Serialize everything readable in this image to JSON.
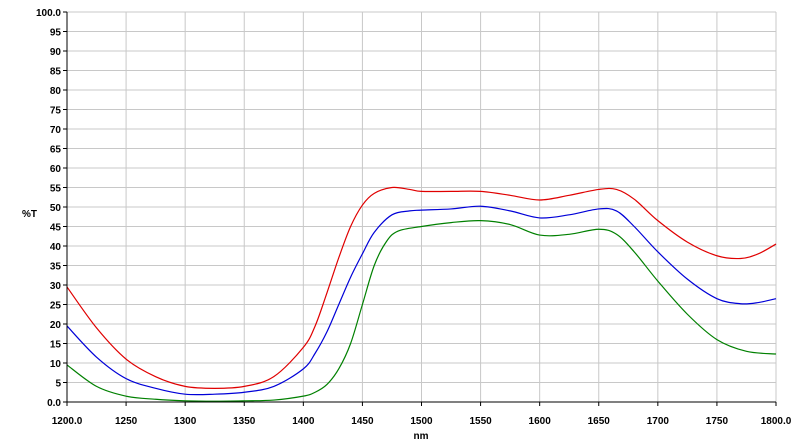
{
  "chart_data": {
    "type": "line",
    "xlabel": "nm",
    "ylabel": "%T",
    "xlim": [
      1200,
      1800
    ],
    "ylim": [
      0,
      100
    ],
    "x_ticks": [
      1200,
      1250,
      1300,
      1350,
      1400,
      1450,
      1500,
      1550,
      1600,
      1650,
      1700,
      1750,
      1800
    ],
    "x_tick_labels": [
      "1200.0",
      "1250",
      "1300",
      "1350",
      "1400",
      "1450",
      "1500",
      "1550",
      "1600",
      "1650",
      "1700",
      "1750",
      "1800.0"
    ],
    "y_ticks": [
      0,
      5,
      10,
      15,
      20,
      25,
      30,
      35,
      40,
      45,
      50,
      55,
      60,
      65,
      70,
      75,
      80,
      85,
      90,
      95,
      100
    ],
    "y_tick_labels": [
      "0.0",
      "5",
      "10",
      "15",
      "20",
      "25",
      "30",
      "35",
      "40",
      "45",
      "50",
      "55",
      "60",
      "65",
      "70",
      "75",
      "80",
      "85",
      "90",
      "95",
      "100.0"
    ],
    "grid": true,
    "colors": {
      "grid": "#c8c8c8",
      "axis": "#000000"
    },
    "series": [
      {
        "color": "#e00000",
        "points": [
          [
            1200,
            29.5
          ],
          [
            1225,
            19
          ],
          [
            1250,
            11
          ],
          [
            1275,
            6.5
          ],
          [
            1300,
            4
          ],
          [
            1325,
            3.5
          ],
          [
            1350,
            4
          ],
          [
            1375,
            6.5
          ],
          [
            1400,
            14
          ],
          [
            1410,
            19.5
          ],
          [
            1420,
            28
          ],
          [
            1430,
            37
          ],
          [
            1440,
            45
          ],
          [
            1450,
            50.5
          ],
          [
            1460,
            53.5
          ],
          [
            1475,
            55
          ],
          [
            1490,
            54.5
          ],
          [
            1500,
            54
          ],
          [
            1525,
            54
          ],
          [
            1550,
            54
          ],
          [
            1575,
            53
          ],
          [
            1600,
            51.8
          ],
          [
            1625,
            53
          ],
          [
            1650,
            54.5
          ],
          [
            1665,
            54.5
          ],
          [
            1680,
            52
          ],
          [
            1700,
            46.5
          ],
          [
            1725,
            41
          ],
          [
            1750,
            37.5
          ],
          [
            1770,
            36.8
          ],
          [
            1785,
            38
          ],
          [
            1800,
            40.5
          ]
        ]
      },
      {
        "color": "#0000d8",
        "points": [
          [
            1200,
            19.5
          ],
          [
            1225,
            11.5
          ],
          [
            1250,
            6
          ],
          [
            1275,
            3.5
          ],
          [
            1300,
            2
          ],
          [
            1325,
            2
          ],
          [
            1350,
            2.5
          ],
          [
            1375,
            4
          ],
          [
            1400,
            8.5
          ],
          [
            1410,
            12.5
          ],
          [
            1420,
            18
          ],
          [
            1430,
            25
          ],
          [
            1440,
            32
          ],
          [
            1450,
            38
          ],
          [
            1460,
            43.5
          ],
          [
            1475,
            48
          ],
          [
            1490,
            49
          ],
          [
            1500,
            49.2
          ],
          [
            1525,
            49.5
          ],
          [
            1550,
            50.2
          ],
          [
            1575,
            49
          ],
          [
            1600,
            47.2
          ],
          [
            1625,
            48
          ],
          [
            1650,
            49.5
          ],
          [
            1665,
            49
          ],
          [
            1680,
            45
          ],
          [
            1700,
            38.5
          ],
          [
            1725,
            31.5
          ],
          [
            1750,
            26.5
          ],
          [
            1770,
            25.2
          ],
          [
            1785,
            25.5
          ],
          [
            1800,
            26.5
          ]
        ]
      },
      {
        "color": "#008000",
        "points": [
          [
            1200,
            9.5
          ],
          [
            1225,
            4
          ],
          [
            1250,
            1.5
          ],
          [
            1275,
            0.7
          ],
          [
            1300,
            0.3
          ],
          [
            1325,
            0.2
          ],
          [
            1350,
            0.3
          ],
          [
            1375,
            0.5
          ],
          [
            1400,
            1.5
          ],
          [
            1410,
            2.5
          ],
          [
            1420,
            4.5
          ],
          [
            1430,
            8.5
          ],
          [
            1440,
            15
          ],
          [
            1450,
            25
          ],
          [
            1460,
            35
          ],
          [
            1470,
            41
          ],
          [
            1480,
            43.8
          ],
          [
            1500,
            45
          ],
          [
            1525,
            46
          ],
          [
            1550,
            46.5
          ],
          [
            1575,
            45.5
          ],
          [
            1600,
            42.8
          ],
          [
            1625,
            43
          ],
          [
            1650,
            44.3
          ],
          [
            1665,
            43
          ],
          [
            1680,
            38.5
          ],
          [
            1700,
            31
          ],
          [
            1725,
            22.5
          ],
          [
            1750,
            16
          ],
          [
            1775,
            13
          ],
          [
            1800,
            12.3
          ]
        ]
      }
    ]
  }
}
